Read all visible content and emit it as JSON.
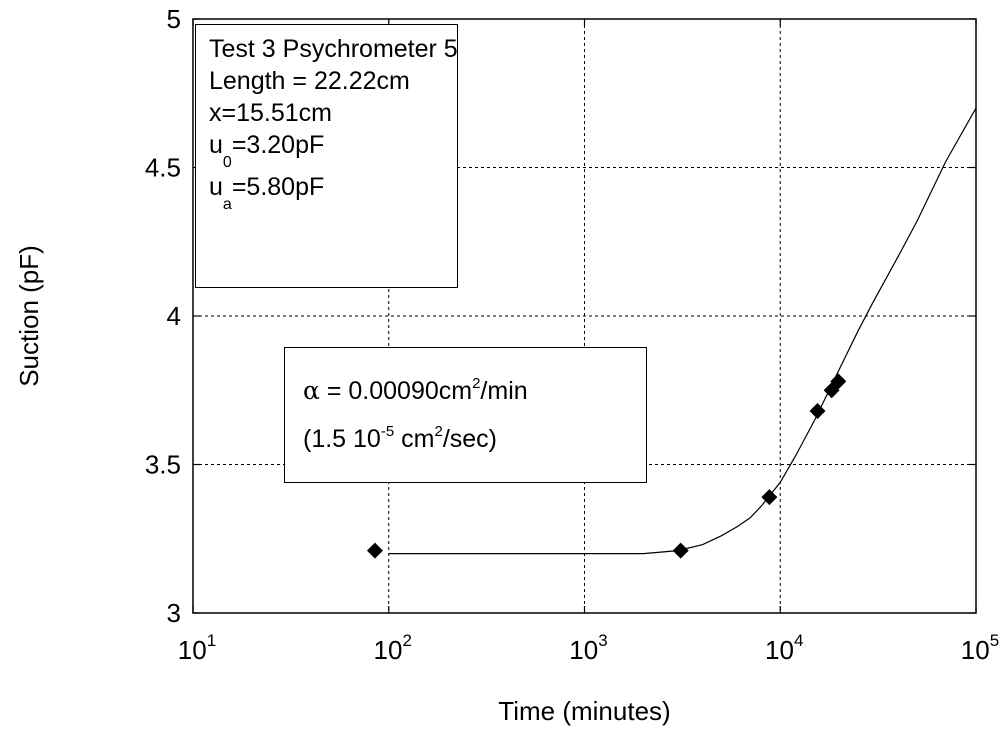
{
  "chart_data": {
    "type": "scatter",
    "xlabel": "Time (minutes)",
    "ylabel": "Suction (pF)",
    "xscale": "log",
    "xlim": [
      10,
      100000
    ],
    "ylim": [
      3,
      5
    ],
    "xticks": [
      {
        "value": 10,
        "base": "10",
        "exp": "1"
      },
      {
        "value": 100,
        "base": "10",
        "exp": "2"
      },
      {
        "value": 1000,
        "base": "10",
        "exp": "3"
      },
      {
        "value": 10000,
        "base": "10",
        "exp": "4"
      },
      {
        "value": 100000,
        "base": "10",
        "exp": "5"
      }
    ],
    "yticks": [
      {
        "value": 3,
        "label": "3"
      },
      {
        "value": 3.5,
        "label": "3.5"
      },
      {
        "value": 4,
        "label": "4"
      },
      {
        "value": 4.5,
        "label": "4.5"
      },
      {
        "value": 5,
        "label": "5"
      }
    ],
    "grid": true,
    "series": [
      {
        "kind": "markers",
        "marker": "diamond",
        "points": [
          {
            "x": 85,
            "y": 3.21
          },
          {
            "x": 3100,
            "y": 3.21
          },
          {
            "x": 8800,
            "y": 3.39
          },
          {
            "x": 15500,
            "y": 3.68
          },
          {
            "x": 18300,
            "y": 3.75
          },
          {
            "x": 19800,
            "y": 3.78
          }
        ]
      },
      {
        "kind": "line",
        "points": [
          {
            "x": 100,
            "y": 3.2
          },
          {
            "x": 200,
            "y": 3.2
          },
          {
            "x": 500,
            "y": 3.2
          },
          {
            "x": 1000,
            "y": 3.2
          },
          {
            "x": 2000,
            "y": 3.2
          },
          {
            "x": 3000,
            "y": 3.21
          },
          {
            "x": 4000,
            "y": 3.23
          },
          {
            "x": 5000,
            "y": 3.26
          },
          {
            "x": 6000,
            "y": 3.29
          },
          {
            "x": 7000,
            "y": 3.32
          },
          {
            "x": 8000,
            "y": 3.36
          },
          {
            "x": 10000,
            "y": 3.44
          },
          {
            "x": 12000,
            "y": 3.53
          },
          {
            "x": 15000,
            "y": 3.65
          },
          {
            "x": 20000,
            "y": 3.82
          },
          {
            "x": 25000,
            "y": 3.95
          },
          {
            "x": 30000,
            "y": 4.05
          },
          {
            "x": 40000,
            "y": 4.2
          },
          {
            "x": 50000,
            "y": 4.32
          },
          {
            "x": 70000,
            "y": 4.52
          },
          {
            "x": 100000,
            "y": 4.7
          }
        ]
      }
    ],
    "annotations": {
      "info": {
        "line1": "Test 3 Psychrometer 5",
        "line2": "Length = 22.22cm",
        "line3": "x=15.51cm",
        "u0_main": "u",
        "u0_sub": "0",
        "u0_rest": "=3.20pF",
        "ua_main": "u",
        "ua_sub": "a",
        "ua_rest": "=5.80pF"
      },
      "alpha": {
        "symbol": "α",
        "text1": " = 0.00090cm",
        "sup1": "2",
        "text2": "/min",
        "paren_open": "(1.5 10",
        "sup_exp": "-5",
        "mid": " cm",
        "sup2": "2",
        "end": "/sec)"
      }
    }
  }
}
